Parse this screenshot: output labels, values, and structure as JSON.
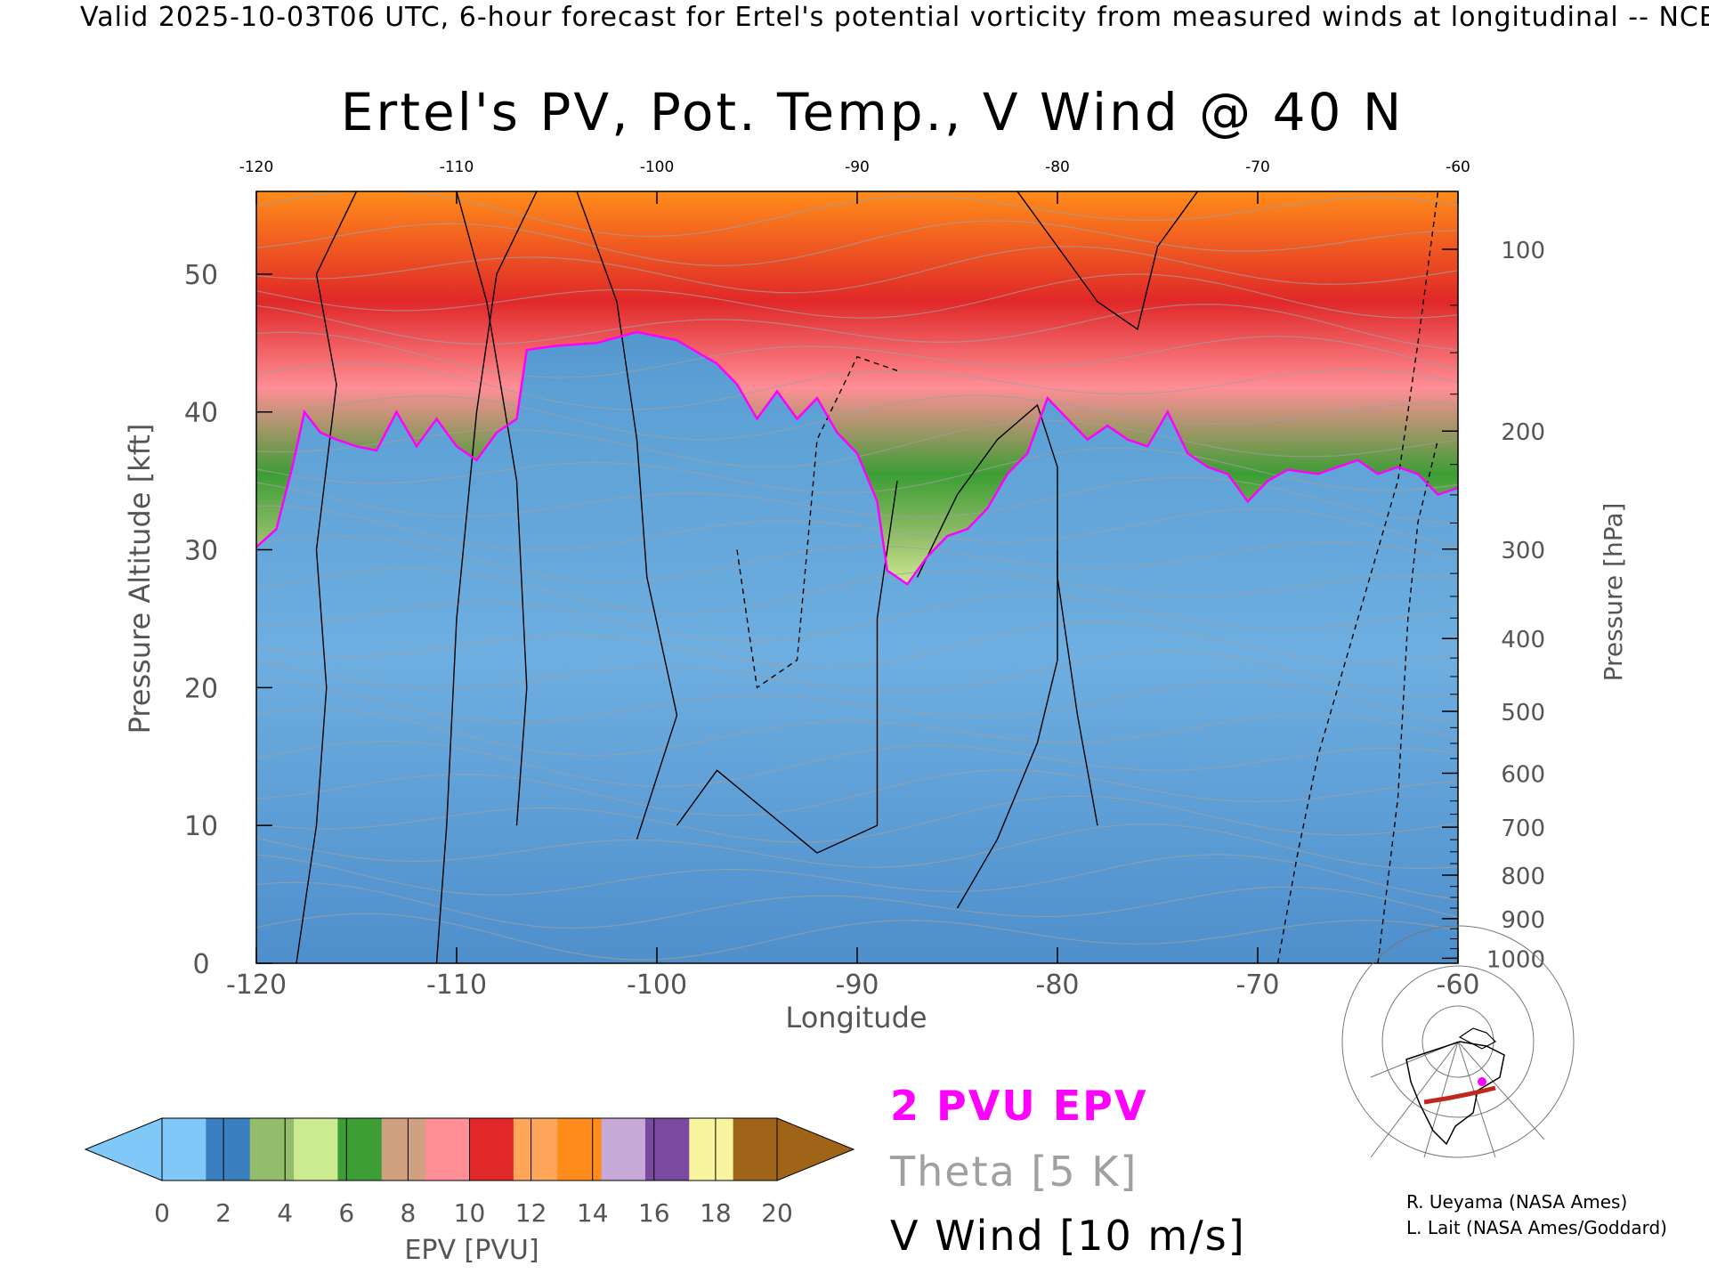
{
  "banner": "Valid 2025-10-03T06 UTC, 6-hour forecast for Ertel's potential vorticity from measured winds at longitudinal -- NCE",
  "chart_data": {
    "type": "heatmap",
    "title": "Ertel's PV, Pot. Temp., V Wind @ 40 N",
    "xlabel": "Longitude",
    "ylabel": "Pressure Altitude [kft]",
    "y2label": "Pressure [hPa]",
    "xlim": [
      -120,
      -60
    ],
    "ylim": [
      0,
      56
    ],
    "x_ticks": [
      "-120",
      "-110",
      "-100",
      "-90",
      "-80",
      "-70",
      "-60"
    ],
    "y_ticks": [
      "0",
      "10",
      "20",
      "30",
      "40",
      "50"
    ],
    "pressure_ticks": [
      "100",
      "200",
      "300",
      "400",
      "500",
      "600",
      "700",
      "800",
      "900",
      "1000"
    ],
    "pressure_values": [
      100,
      200,
      300,
      400,
      500,
      600,
      700,
      800,
      900,
      1000
    ],
    "tropopause_2pvu": [
      [
        -120,
        30.2
      ],
      [
        -119,
        31.5
      ],
      [
        -118.2,
        36
      ],
      [
        -117.6,
        40
      ],
      [
        -116.8,
        38.5
      ],
      [
        -116,
        38
      ],
      [
        -115,
        37.5
      ],
      [
        -114,
        37.2
      ],
      [
        -113,
        40
      ],
      [
        -112,
        37.5
      ],
      [
        -111,
        39.5
      ],
      [
        -110,
        37.5
      ],
      [
        -109,
        36.5
      ],
      [
        -108,
        38.5
      ],
      [
        -107,
        39.5
      ],
      [
        -106.5,
        44.5
      ],
      [
        -105,
        44.8
      ],
      [
        -103,
        45
      ],
      [
        -101,
        45.8
      ],
      [
        -99,
        45.2
      ],
      [
        -97,
        43.5
      ],
      [
        -96,
        42
      ],
      [
        -95,
        39.5
      ],
      [
        -94,
        41.5
      ],
      [
        -93,
        39.5
      ],
      [
        -92,
        41
      ],
      [
        -91,
        38.5
      ],
      [
        -90,
        37
      ],
      [
        -89,
        33.5
      ],
      [
        -88.5,
        28.5
      ],
      [
        -87.5,
        27.5
      ],
      [
        -86.5,
        29.5
      ],
      [
        -85.5,
        31
      ],
      [
        -84.5,
        31.5
      ],
      [
        -83.5,
        33
      ],
      [
        -82.5,
        35.5
      ],
      [
        -81.5,
        37
      ],
      [
        -80.5,
        41
      ],
      [
        -79.5,
        39.5
      ],
      [
        -78.5,
        38
      ],
      [
        -77.5,
        39
      ],
      [
        -76.5,
        38
      ],
      [
        -75.5,
        37.5
      ],
      [
        -74.5,
        40
      ],
      [
        -73.5,
        37
      ],
      [
        -72.5,
        36
      ],
      [
        -71.5,
        35.5
      ],
      [
        -70.5,
        33.5
      ],
      [
        -69.5,
        35
      ],
      [
        -68.5,
        35.8
      ],
      [
        -67,
        35.5
      ],
      [
        -66,
        36
      ],
      [
        -65,
        36.5
      ],
      [
        -64,
        35.5
      ],
      [
        -63,
        36
      ],
      [
        -62,
        35.5
      ],
      [
        -61,
        34
      ],
      [
        -60,
        34.5
      ]
    ],
    "colorbar": {
      "label": "EPV [PVU]",
      "ticks": [
        "0",
        "2",
        "4",
        "6",
        "8",
        "10",
        "12",
        "14",
        "16",
        "18",
        "20"
      ],
      "min": 0,
      "max": 20,
      "extend": "both",
      "colors": [
        "#7fc8f8",
        "#3a7fc0",
        "#93bd6a",
        "#ccea8f",
        "#3c9e34",
        "#d0a080",
        "#ff8e96",
        "#e02828",
        "#ffa65a",
        "#ff8c1a",
        "#c6a9d6",
        "#7a4aa0",
        "#f8f4a0",
        "#a06418"
      ]
    },
    "legend": [
      {
        "name": "2 PVU EPV",
        "color": "#ff00ff"
      },
      {
        "name": "Theta [5 K]",
        "color": "#a0a0a0"
      },
      {
        "name": "V Wind [10 m/s]",
        "color": "#000000"
      }
    ]
  },
  "credits": [
    "R. Ueyama (NASA Ames)",
    "L. Lait (NASA Ames/Goddard)"
  ]
}
